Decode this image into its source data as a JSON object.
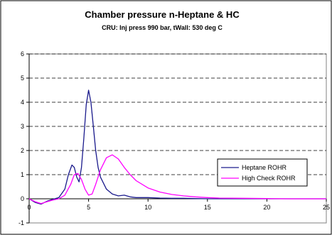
{
  "chart_data": {
    "type": "line",
    "title": "Chamber pressure n-Heptane & HC",
    "subtitle": "CRU: Inj press 990 bar, tWall: 530 deg C",
    "xlabel": "",
    "ylabel": "",
    "xlim": [
      0,
      25
    ],
    "ylim": [
      -1,
      6
    ],
    "x_ticks": [
      "0",
      "5",
      "10",
      "15",
      "20",
      "25"
    ],
    "y_ticks": [
      "-1",
      "0",
      "1",
      "2",
      "3",
      "4",
      "5",
      "6"
    ],
    "grid": "horizontal dashed",
    "legend_position": "right, inside plot area",
    "series": [
      {
        "name": "Heptane ROHR",
        "color": "#1a1a8c",
        "x": [
          0,
          0.5,
          1,
          1.5,
          2,
          2.5,
          3,
          3.3,
          3.6,
          3.8,
          4.0,
          4.2,
          4.4,
          4.6,
          4.8,
          5.0,
          5.2,
          5.4,
          5.6,
          5.8,
          6.0,
          6.5,
          7.0,
          7.5,
          8.0,
          8.5,
          9.0,
          10,
          11,
          12,
          13,
          14,
          15,
          16,
          18,
          20,
          22,
          25
        ],
        "y": [
          0,
          -0.15,
          -0.22,
          -0.1,
          -0.02,
          0.05,
          0.4,
          1.0,
          1.4,
          1.3,
          0.9,
          0.7,
          1.3,
          2.5,
          3.9,
          4.5,
          4.0,
          3.0,
          2.0,
          1.3,
          0.9,
          0.4,
          0.2,
          0.12,
          0.15,
          0.08,
          0.05,
          0.05,
          0.03,
          0.02,
          0.02,
          0.01,
          0.0,
          0.0,
          0.0,
          0.0,
          0.0,
          0.0
        ]
      },
      {
        "name": "High Check ROHR",
        "color": "#ff00ff",
        "x": [
          0,
          0.5,
          1,
          1.5,
          2,
          2.5,
          3,
          3.5,
          3.8,
          4.1,
          4.4,
          4.7,
          5.0,
          5.3,
          5.6,
          6.0,
          6.5,
          7.0,
          7.5,
          8.0,
          8.5,
          9.0,
          10,
          11,
          12,
          13,
          14,
          15,
          16,
          18,
          20,
          22,
          25
        ],
        "y": [
          0,
          -0.12,
          -0.2,
          -0.12,
          -0.05,
          0.0,
          0.15,
          0.6,
          1.0,
          1.05,
          0.8,
          0.4,
          0.15,
          0.2,
          0.6,
          1.2,
          1.7,
          1.82,
          1.65,
          1.3,
          1.0,
          0.75,
          0.45,
          0.28,
          0.18,
          0.12,
          0.08,
          0.05,
          0.03,
          0.02,
          0.01,
          0.0,
          0.0
        ]
      }
    ]
  }
}
